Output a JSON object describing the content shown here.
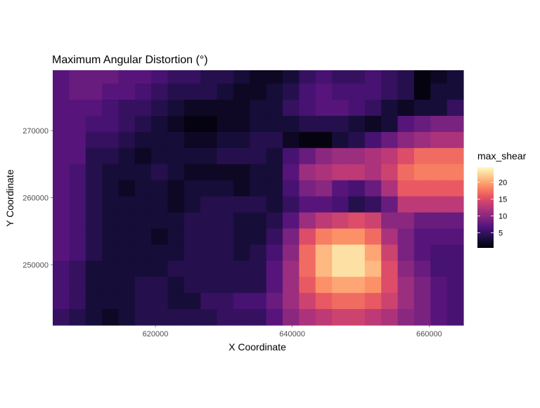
{
  "chart_data": {
    "type": "heatmap",
    "title": "Maximum Angular Distortion (°)",
    "xlabel": "X Coordinate",
    "ylabel": "Y Coordinate",
    "xlim": [
      605000,
      665000
    ],
    "ylim": [
      241000,
      279000
    ],
    "x_ticks": [
      {
        "value": 620000,
        "label": "620000"
      },
      {
        "value": 640000,
        "label": "640000"
      },
      {
        "value": 660000,
        "label": "660000"
      }
    ],
    "y_ticks": [
      {
        "value": 250000,
        "label": "250000"
      },
      {
        "value": 260000,
        "label": "260000"
      },
      {
        "value": 270000,
        "label": "270000"
      }
    ],
    "grid": false,
    "legend": {
      "title": "max_shear",
      "position": "right",
      "range": [
        0.5,
        24.5
      ],
      "ticks": [
        {
          "value": 5,
          "label": "5"
        },
        {
          "value": 10,
          "label": "10"
        },
        {
          "value": 15,
          "label": "15"
        },
        {
          "value": 20,
          "label": "20"
        }
      ]
    },
    "colormap": "magma",
    "grid_cells": {
      "cols": 25,
      "rows": 16,
      "cell_width": 2400,
      "cell_height": 2400,
      "x_origin": 605000,
      "y_origin": 241000,
      "values_top_to_bottom": [
        [
          7,
          8,
          8,
          8,
          7,
          7,
          6,
          5,
          5,
          4,
          4,
          3,
          2,
          2,
          3,
          5,
          6,
          5,
          5,
          6,
          5,
          4,
          1,
          2,
          3
        ],
        [
          7,
          8,
          8,
          7,
          7,
          6,
          5,
          4,
          4,
          4,
          3,
          2,
          2,
          3,
          4,
          6,
          7,
          6,
          6,
          6,
          5,
          4,
          1,
          3,
          3
        ],
        [
          7,
          7,
          7,
          6,
          5,
          5,
          4,
          3,
          2,
          2,
          2,
          2,
          3,
          3,
          5,
          6,
          7,
          7,
          6,
          5,
          3,
          2,
          3,
          3,
          5
        ],
        [
          7,
          7,
          6,
          6,
          5,
          4,
          3,
          2,
          1,
          1,
          2,
          2,
          3,
          3,
          3,
          4,
          4,
          4,
          3,
          2,
          3,
          7,
          8,
          9,
          9
        ],
        [
          7,
          7,
          5,
          5,
          4,
          3,
          3,
          3,
          2,
          2,
          3,
          3,
          4,
          4,
          2,
          1,
          1,
          3,
          4,
          6,
          8,
          10,
          11,
          12,
          12
        ],
        [
          7,
          7,
          4,
          4,
          3,
          2,
          3,
          3,
          3,
          3,
          4,
          4,
          4,
          3,
          6,
          8,
          10,
          11,
          11,
          12,
          13,
          15,
          17,
          17,
          17
        ],
        [
          7,
          6,
          4,
          3,
          3,
          3,
          4,
          3,
          2,
          2,
          2,
          2,
          3,
          3,
          7,
          11,
          12,
          13,
          13,
          12,
          14,
          17,
          18,
          18,
          18
        ],
        [
          7,
          6,
          4,
          3,
          2,
          3,
          3,
          2,
          3,
          3,
          3,
          2,
          3,
          3,
          6,
          9,
          10,
          7,
          6,
          8,
          12,
          16,
          16,
          16,
          16
        ],
        [
          7,
          6,
          4,
          3,
          3,
          3,
          3,
          2,
          3,
          4,
          4,
          4,
          4,
          3,
          5,
          7,
          7,
          6,
          4,
          5,
          8,
          13,
          13,
          13,
          13
        ],
        [
          7,
          6,
          4,
          3,
          3,
          3,
          3,
          3,
          4,
          4,
          4,
          3,
          3,
          4,
          7,
          11,
          13,
          14,
          15,
          14,
          10,
          10,
          8,
          8,
          8
        ],
        [
          7,
          6,
          4,
          3,
          3,
          3,
          2,
          3,
          4,
          4,
          4,
          3,
          3,
          5,
          9,
          15,
          18,
          19,
          19,
          17,
          12,
          9,
          7,
          7,
          7
        ],
        [
          7,
          6,
          4,
          3,
          3,
          3,
          3,
          3,
          4,
          4,
          4,
          3,
          4,
          6,
          10,
          17,
          21,
          23,
          23,
          20,
          14,
          9,
          7,
          6,
          6
        ],
        [
          6,
          5,
          3,
          3,
          3,
          3,
          3,
          4,
          4,
          4,
          4,
          4,
          4,
          7,
          11,
          17,
          21,
          23,
          23,
          21,
          15,
          10,
          8,
          6,
          6
        ],
        [
          6,
          5,
          3,
          3,
          3,
          4,
          4,
          3,
          4,
          4,
          4,
          4,
          4,
          7,
          11,
          16,
          19,
          20,
          20,
          19,
          15,
          11,
          9,
          7,
          6
        ],
        [
          6,
          5,
          3,
          3,
          3,
          4,
          4,
          3,
          3,
          5,
          5,
          6,
          6,
          8,
          11,
          14,
          16,
          17,
          17,
          16,
          14,
          11,
          9,
          7,
          6
        ],
        [
          5,
          4,
          3,
          2,
          3,
          4,
          4,
          4,
          4,
          4,
          5,
          5,
          5,
          7,
          10,
          12,
          13,
          14,
          14,
          13,
          12,
          10,
          9,
          7,
          6
        ]
      ]
    }
  }
}
